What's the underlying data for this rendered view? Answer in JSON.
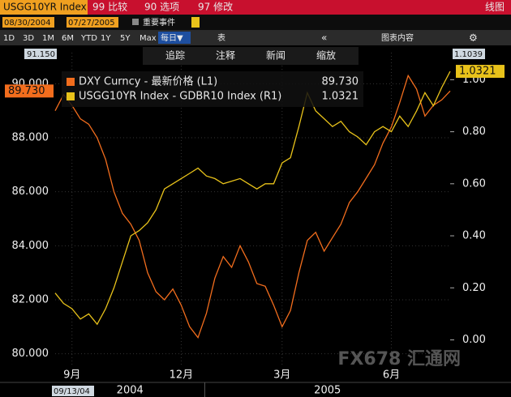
{
  "header": {
    "security": "USGG10YR Index",
    "menu": [
      "99 比较",
      "90 选项",
      "97 修改"
    ],
    "view": "线图"
  },
  "range": {
    "start": "08/30/2004",
    "end": "07/27/2005",
    "events": "重要事件"
  },
  "periods": [
    "1D",
    "3D",
    "1M",
    "6M",
    "YTD",
    "1Y",
    "5Y",
    "Max"
  ],
  "frequency": "每日▼",
  "table": "表",
  "chart_content": "图表内容",
  "tools": [
    "追踪",
    "注释",
    "新闻",
    "缩放"
  ],
  "watermark": "FX678 汇通网",
  "chart_data": {
    "type": "line",
    "categories": [
      null,
      null,
      "9月",
      null,
      null,
      null,
      null,
      null,
      null,
      null,
      null,
      null,
      null,
      null,
      null,
      "12月",
      null,
      null,
      null,
      null,
      null,
      null,
      null,
      null,
      null,
      null,
      null,
      "3月",
      null,
      null,
      null,
      null,
      null,
      null,
      null,
      null,
      null,
      null,
      null,
      null,
      "6月",
      null,
      null,
      null,
      null,
      null,
      null,
      null
    ],
    "x_group_labels": [
      "2004",
      "2005"
    ],
    "x_start_label": "09/13/04",
    "series": [
      {
        "name": "DXY Curncy - 最新价格 (L1)",
        "color": "#f26d1d",
        "legend_value": "89.730",
        "values": [
          89.0,
          89.6,
          89.2,
          88.7,
          88.5,
          88.0,
          87.2,
          86.0,
          85.2,
          84.8,
          84.2,
          83.0,
          82.3,
          82.0,
          82.4,
          81.8,
          81.0,
          80.6,
          81.5,
          82.8,
          83.6,
          83.2,
          84.0,
          83.4,
          82.6,
          82.5,
          81.8,
          81.0,
          81.6,
          83.0,
          84.2,
          84.5,
          83.8,
          84.3,
          84.8,
          85.6,
          86.0,
          86.5,
          87.0,
          87.8,
          88.4,
          89.3,
          90.3,
          89.8,
          88.8,
          89.2,
          89.4,
          89.73
        ]
      },
      {
        "name": "USGG10YR Index - GDBR10 Index (R1)",
        "color": "#e8c21a",
        "axis": "y2",
        "legend_value": "1.0321",
        "values": [
          0.18,
          0.14,
          0.12,
          0.08,
          0.1,
          0.06,
          0.12,
          0.2,
          0.3,
          0.4,
          0.42,
          0.45,
          0.5,
          0.58,
          0.6,
          0.62,
          0.64,
          0.66,
          0.63,
          0.62,
          0.6,
          0.61,
          0.62,
          0.6,
          0.58,
          0.6,
          0.6,
          0.68,
          0.7,
          0.82,
          0.95,
          0.88,
          0.85,
          0.82,
          0.84,
          0.8,
          0.78,
          0.75,
          0.8,
          0.82,
          0.8,
          0.86,
          0.82,
          0.88,
          0.95,
          0.9,
          0.97,
          1.0321
        ]
      }
    ],
    "ylim": [
      79.6,
      91.15
    ],
    "ylim_label": "91.150",
    "yticks": [
      {
        "value": 80,
        "label": "80.000"
      },
      {
        "value": 82,
        "label": "82.000"
      },
      {
        "value": 84,
        "label": "84.000"
      },
      {
        "value": 86,
        "label": "86.000"
      },
      {
        "value": 88,
        "label": "88.000"
      },
      {
        "value": 90,
        "label": "90.000"
      }
    ],
    "y2lim": [
      -0.095,
      1.1039
    ],
    "y2lim_label": "1.1039",
    "y2ticks": [
      {
        "value": 0,
        "label": "0.00"
      },
      {
        "value": 0.2,
        "label": "0.20"
      },
      {
        "value": 0.4,
        "label": "0.40"
      },
      {
        "value": 0.6,
        "label": "0.60"
      },
      {
        "value": 0.8,
        "label": "0.80"
      },
      {
        "value": 1,
        "label": "1.00"
      }
    ],
    "grid": true
  }
}
